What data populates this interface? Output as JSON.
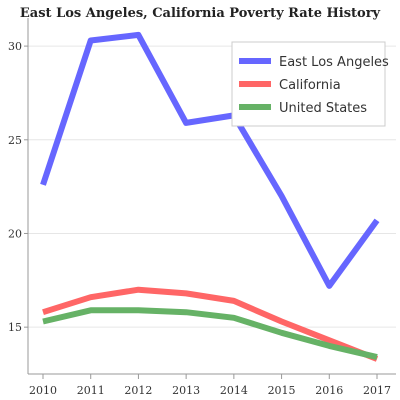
{
  "chart_data": {
    "type": "line",
    "title": "East Los Angeles, California Poverty Rate History",
    "xlabel": "",
    "ylabel": "",
    "x": [
      "2010",
      "2011",
      "2012",
      "2013",
      "2014",
      "2015",
      "2016",
      "2017"
    ],
    "xlim": [
      2010,
      2017
    ],
    "ylim": [
      12.5,
      31.5
    ],
    "yticks": [
      15,
      20,
      25,
      30
    ],
    "grid": true,
    "legend_position": "top-right",
    "series": [
      {
        "name": "East Los Angeles",
        "color": "#6666ff",
        "values": [
          22.6,
          30.3,
          30.6,
          25.9,
          26.3,
          22.0,
          17.2,
          20.7
        ]
      },
      {
        "name": "California",
        "color": "#ff6666",
        "values": [
          15.8,
          16.6,
          17.0,
          16.8,
          16.4,
          15.3,
          14.3,
          13.3
        ]
      },
      {
        "name": "United States",
        "color": "#66b266",
        "values": [
          15.3,
          15.9,
          15.9,
          15.8,
          15.5,
          14.7,
          14.0,
          13.4
        ]
      }
    ]
  }
}
